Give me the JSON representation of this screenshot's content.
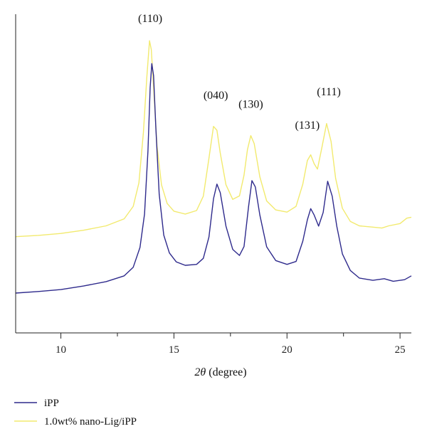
{
  "chart_data": {
    "type": "line",
    "xlabel_symbol": "2θ",
    "xlabel_unit": "(degree)",
    "ylabel": "",
    "xlim": [
      8,
      25.5
    ],
    "ylim": [
      0,
      100
    ],
    "x_ticks": [
      10,
      15,
      20,
      25
    ],
    "x_tick_labels": [
      "10",
      "15",
      "20",
      "25"
    ],
    "grid": false,
    "legend_position": "bottom-left",
    "series": [
      {
        "name": "iPP",
        "color": "#2e2a8c",
        "points": [
          [
            8,
            12.5
          ],
          [
            9,
            13.0
          ],
          [
            10,
            13.6
          ],
          [
            11,
            14.7
          ],
          [
            12,
            16.1
          ],
          [
            12.8,
            17.9
          ],
          [
            13.2,
            20.6
          ],
          [
            13.5,
            26.8
          ],
          [
            13.7,
            37.3
          ],
          [
            13.85,
            57.1
          ],
          [
            13.95,
            77.0
          ],
          [
            14.02,
            84.5
          ],
          [
            14.1,
            80.7
          ],
          [
            14.2,
            64.3
          ],
          [
            14.35,
            43.5
          ],
          [
            14.55,
            30.7
          ],
          [
            14.8,
            25.1
          ],
          [
            15.1,
            22.3
          ],
          [
            15.5,
            21.2
          ],
          [
            16.0,
            21.5
          ],
          [
            16.3,
            23.4
          ],
          [
            16.55,
            30.1
          ],
          [
            16.75,
            42.1
          ],
          [
            16.9,
            46.7
          ],
          [
            17.05,
            44.0
          ],
          [
            17.3,
            33.5
          ],
          [
            17.6,
            26.2
          ],
          [
            17.9,
            24.3
          ],
          [
            18.1,
            27.1
          ],
          [
            18.3,
            39.5
          ],
          [
            18.45,
            47.8
          ],
          [
            18.6,
            45.8
          ],
          [
            18.8,
            37.0
          ],
          [
            19.1,
            27.0
          ],
          [
            19.5,
            22.7
          ],
          [
            20.0,
            21.5
          ],
          [
            20.4,
            22.4
          ],
          [
            20.7,
            28.8
          ],
          [
            20.9,
            35.5
          ],
          [
            21.05,
            39.0
          ],
          [
            21.2,
            37.0
          ],
          [
            21.4,
            33.5
          ],
          [
            21.6,
            37.8
          ],
          [
            21.8,
            47.6
          ],
          [
            22.0,
            42.9
          ],
          [
            22.2,
            33.5
          ],
          [
            22.45,
            24.8
          ],
          [
            22.8,
            19.6
          ],
          [
            23.2,
            17.2
          ],
          [
            23.8,
            16.5
          ],
          [
            24.3,
            17.0
          ],
          [
            24.7,
            16.2
          ],
          [
            25.2,
            16.7
          ],
          [
            25.5,
            17.9
          ]
        ]
      },
      {
        "name": "1.0wt% nano-Lig/iPP",
        "color": "#f2ea6e",
        "points": [
          [
            8,
            30.2
          ],
          [
            9,
            30.6
          ],
          [
            10,
            31.2
          ],
          [
            11,
            32.2
          ],
          [
            12,
            33.6
          ],
          [
            12.8,
            35.8
          ],
          [
            13.2,
            39.7
          ],
          [
            13.45,
            47.1
          ],
          [
            13.65,
            62.9
          ],
          [
            13.8,
            80.2
          ],
          [
            13.92,
            91.7
          ],
          [
            14.0,
            88.9
          ],
          [
            14.1,
            77.0
          ],
          [
            14.25,
            58.8
          ],
          [
            14.45,
            46.5
          ],
          [
            14.7,
            40.6
          ],
          [
            15.0,
            38.2
          ],
          [
            15.5,
            37.3
          ],
          [
            16.0,
            38.4
          ],
          [
            16.3,
            42.9
          ],
          [
            16.55,
            54.8
          ],
          [
            16.75,
            64.8
          ],
          [
            16.9,
            63.6
          ],
          [
            17.05,
            56.4
          ],
          [
            17.3,
            46.5
          ],
          [
            17.6,
            41.9
          ],
          [
            17.9,
            43.0
          ],
          [
            18.1,
            49.5
          ],
          [
            18.25,
            57.5
          ],
          [
            18.4,
            61.9
          ],
          [
            18.55,
            59.4
          ],
          [
            18.8,
            49.0
          ],
          [
            19.1,
            41.4
          ],
          [
            19.5,
            38.6
          ],
          [
            20.0,
            37.9
          ],
          [
            20.4,
            39.7
          ],
          [
            20.7,
            46.7
          ],
          [
            20.9,
            54.1
          ],
          [
            21.05,
            55.9
          ],
          [
            21.2,
            53.1
          ],
          [
            21.35,
            51.4
          ],
          [
            21.55,
            58.4
          ],
          [
            21.75,
            65.7
          ],
          [
            21.95,
            60.1
          ],
          [
            22.15,
            48.5
          ],
          [
            22.45,
            39.1
          ],
          [
            22.8,
            35.0
          ],
          [
            23.2,
            33.6
          ],
          [
            23.8,
            33.2
          ],
          [
            24.2,
            32.9
          ],
          [
            24.5,
            33.6
          ],
          [
            25.0,
            34.3
          ],
          [
            25.3,
            36.0
          ],
          [
            25.5,
            36.3
          ]
        ]
      }
    ],
    "annotations": [
      {
        "text": "(110)",
        "x": 13.95,
        "y": 97.6
      },
      {
        "text": "(040)",
        "x": 16.85,
        "y": 73.4
      },
      {
        "text": "(130)",
        "x": 18.4,
        "y": 70.6
      },
      {
        "text": "(131)",
        "x": 20.9,
        "y": 64.1
      },
      {
        "text": "(111)",
        "x": 21.85,
        "y": 74.6
      }
    ]
  }
}
